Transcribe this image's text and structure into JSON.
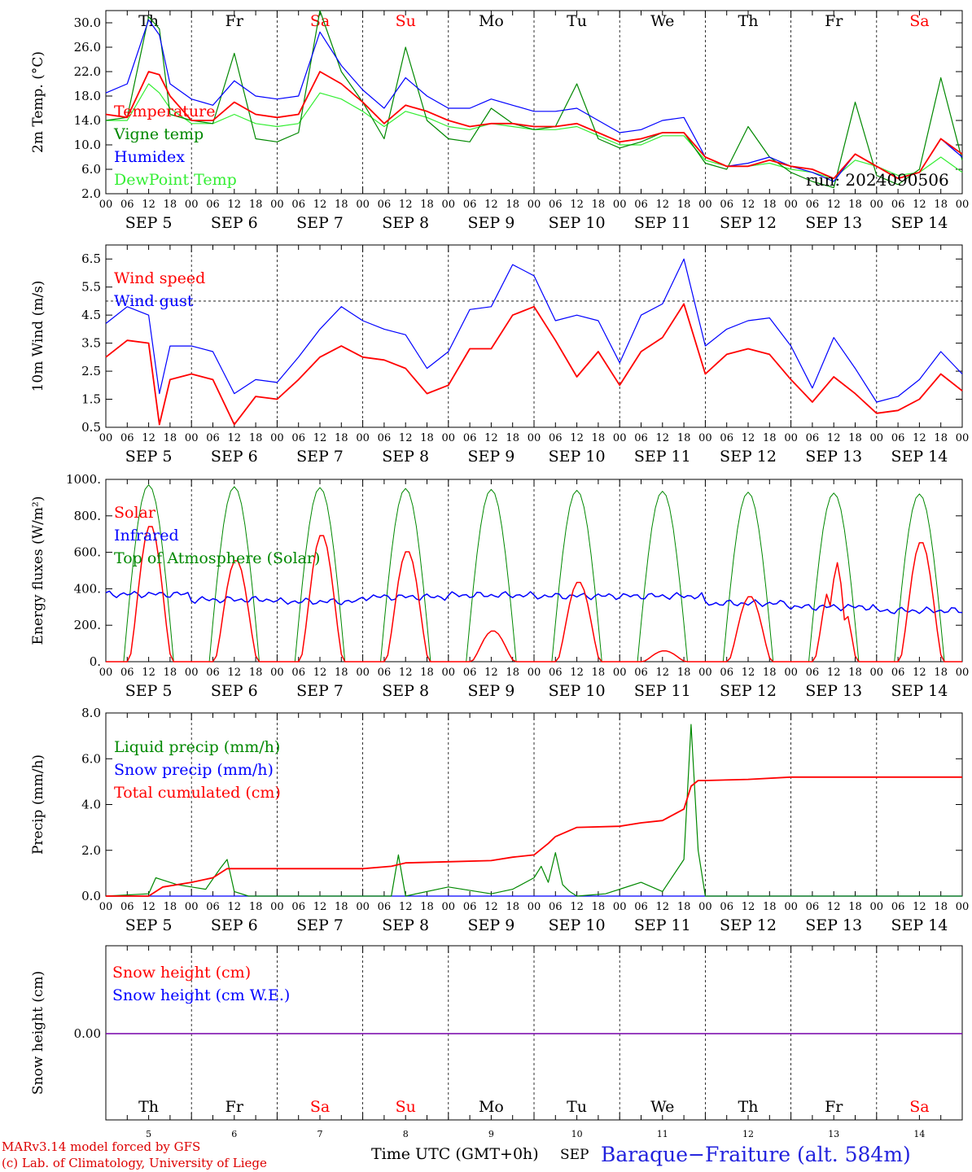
{
  "footer": {
    "model_line": "MARv3.14 model forced by GFS",
    "credit_line": "(c) Lab. of Climatology, University of Liege",
    "time_axis_label": "Time UTC (GMT+0h)",
    "month": "SEP",
    "station": "Baraque−Fraiture (alt. 584m)"
  },
  "days": [
    "Th",
    "Fr",
    "Sa",
    "Su",
    "Mo",
    "Tu",
    "We",
    "Th",
    "Fr",
    "Sa"
  ],
  "weekend_days": [
    "Sa",
    "Su"
  ],
  "day_numbers": [
    "5",
    "6",
    "7",
    "8",
    "9",
    "10",
    "11",
    "12",
    "13",
    "14"
  ],
  "date_labels": [
    "SEP  5",
    "SEP  6",
    "SEP  7",
    "SEP  8",
    "SEP  9",
    "SEP 10",
    "SEP 11",
    "SEP 12",
    "SEP 13",
    "SEP 14"
  ],
  "hour_labels": [
    "00",
    "06",
    "12",
    "18"
  ],
  "colors": {
    "red": "#ff0000",
    "green": "#008800",
    "blue": "#0000ff",
    "lightgreen": "#33ee33",
    "purple": "#7700aa"
  },
  "chart_data": [
    {
      "type": "line",
      "ylabel": "2m Temp. (°C)",
      "ylim": [
        2,
        32
      ],
      "yticks": [
        "2.0",
        "6.0",
        "10.0",
        "14.0",
        "18.0",
        "22.0",
        "26.0",
        "30.0"
      ],
      "ytick_values": [
        2,
        6,
        10,
        14,
        18,
        22,
        26,
        30
      ],
      "run_label": "run: 2024090506",
      "x_hours": [
        0,
        6,
        12,
        15,
        18,
        24,
        30,
        36,
        42,
        48,
        54,
        60,
        66,
        72,
        78,
        84,
        90,
        96,
        102,
        108,
        114,
        120,
        126,
        132,
        138,
        144,
        150,
        156,
        162,
        168,
        174,
        180,
        186,
        192,
        198,
        204,
        210,
        216,
        222,
        228,
        234,
        240
      ],
      "series": [
        {
          "name": "Temperature",
          "color": "#ff0000",
          "values": [
            15,
            14.5,
            22,
            21.5,
            18,
            14,
            14,
            17,
            15,
            14.5,
            15,
            22,
            20,
            17,
            13.5,
            16.5,
            15.5,
            14,
            13,
            13.5,
            13.5,
            13,
            13,
            13.5,
            12,
            10.5,
            11,
            12,
            12,
            8,
            6.5,
            6.5,
            7.5,
            6.5,
            6,
            4.5,
            8.5,
            6.5,
            4.5,
            5.5,
            11,
            8.5
          ]
        },
        {
          "name": "Vigne temp",
          "color": "#008800",
          "values": [
            14,
            14.5,
            31,
            29,
            15,
            14,
            13.5,
            25,
            11,
            10.5,
            12,
            32,
            22,
            17,
            11,
            26,
            14,
            11,
            10.5,
            16,
            13.5,
            12.5,
            13,
            20,
            11,
            9.5,
            10.5,
            12,
            12,
            7,
            6,
            13,
            8,
            5.5,
            4,
            3,
            17,
            5,
            3.5,
            6,
            21,
            7.5
          ]
        },
        {
          "name": "Humidex",
          "color": "#0000ff",
          "values": [
            18.5,
            20,
            30.5,
            28,
            20,
            17.5,
            16.5,
            20.5,
            18,
            17.5,
            18,
            28.5,
            23,
            19,
            16,
            21,
            18,
            16,
            16,
            17.5,
            16.5,
            15.5,
            15.5,
            16,
            14,
            12,
            12.5,
            14,
            14.5,
            8,
            6.5,
            7,
            8,
            6.5,
            5.5,
            4,
            8.5,
            6.5,
            4.5,
            5.5,
            11,
            8
          ]
        },
        {
          "name": "DewPoint Temp",
          "color": "#33ee33",
          "values": [
            14,
            14,
            20,
            18.5,
            16,
            13.5,
            13.5,
            15,
            13.5,
            13,
            13.5,
            18.5,
            17.5,
            15.5,
            13,
            15.5,
            14.5,
            13,
            12.5,
            13.5,
            13,
            12.5,
            12.5,
            13,
            11.5,
            10,
            10,
            11.5,
            11.5,
            7.5,
            6.5,
            6.5,
            7,
            6,
            5.5,
            4.5,
            7.5,
            6.5,
            5,
            5.5,
            8,
            5.5
          ]
        }
      ]
    },
    {
      "type": "line",
      "ylabel": "10m Wind (m/s)",
      "ylim": [
        0.5,
        7
      ],
      "yticks": [
        "0.5",
        "1.5",
        "2.5",
        "3.5",
        "4.5",
        "5.5",
        "6.5"
      ],
      "ytick_values": [
        0.5,
        1.5,
        2.5,
        3.5,
        4.5,
        5.5,
        6.5
      ],
      "reference_line": 5,
      "x_hours": [
        0,
        6,
        12,
        15,
        18,
        24,
        30,
        36,
        42,
        48,
        54,
        60,
        66,
        72,
        78,
        84,
        90,
        96,
        102,
        108,
        114,
        120,
        126,
        132,
        138,
        144,
        150,
        156,
        162,
        168,
        174,
        180,
        186,
        192,
        198,
        204,
        210,
        216,
        222,
        228,
        234,
        240
      ],
      "series": [
        {
          "name": "Wind speed",
          "color": "#ff0000",
          "values": [
            3,
            3.6,
            3.5,
            0.6,
            2.2,
            2.4,
            2.2,
            0.6,
            1.6,
            1.5,
            2.2,
            3,
            3.4,
            3,
            2.9,
            2.6,
            1.7,
            2,
            3.3,
            3.3,
            4.5,
            4.8,
            3.6,
            2.3,
            3.2,
            2,
            3.2,
            3.7,
            4.9,
            2.4,
            3.1,
            3.3,
            3.1,
            2.2,
            1.4,
            2.3,
            1.7,
            1,
            1.1,
            1.5,
            2.4,
            1.8
          ]
        },
        {
          "name": "Wind gust",
          "color": "#0000ff",
          "values": [
            4.2,
            4.8,
            4.5,
            1.7,
            3.4,
            3.4,
            3.2,
            1.7,
            2.2,
            2.1,
            3,
            4,
            4.8,
            4.3,
            4,
            3.8,
            2.6,
            3.2,
            4.7,
            4.8,
            6.3,
            5.9,
            4.3,
            4.5,
            4.3,
            2.8,
            4.5,
            4.9,
            6.5,
            3.4,
            4,
            4.3,
            4.4,
            3.4,
            1.9,
            3.7,
            2.6,
            1.4,
            1.6,
            2.2,
            3.2,
            2.4
          ]
        }
      ]
    },
    {
      "type": "line",
      "ylabel": "Energy fluxes (W/m²)",
      "ylim": [
        0,
        1000
      ],
      "yticks": [
        "0.",
        "200.",
        "400.",
        "600.",
        "800.",
        "1000."
      ],
      "ytick_values": [
        0,
        200,
        400,
        600,
        800,
        1000
      ],
      "toa_peaks": [
        970,
        960,
        955,
        950,
        945,
        940,
        935,
        930,
        925,
        920
      ],
      "solar_peaks": [
        750,
        560,
        700,
        610,
        170,
        440,
        60,
        360,
        550,
        660
      ],
      "infrared_levels": [
        370,
        340,
        330,
        355,
        365,
        360,
        360,
        320,
        300,
        280
      ],
      "series": [
        {
          "name": "Solar",
          "color": "#ff0000"
        },
        {
          "name": "Infrared",
          "color": "#0000ff"
        },
        {
          "name": "Top of Atmosphere (Solar)",
          "color": "#008800"
        }
      ]
    },
    {
      "type": "line",
      "ylabel": "Precip (mm/h)",
      "ylim": [
        0,
        8
      ],
      "yticks": [
        "0.0",
        "2.0",
        "4.0",
        "6.0",
        "8.0"
      ],
      "ytick_values": [
        0,
        2,
        4,
        6,
        8
      ],
      "series": [
        {
          "name": "Liquid precip (mm/h)",
          "color": "#008800",
          "x_hours": [
            0,
            12,
            14,
            16,
            20,
            24,
            28,
            32,
            34,
            36,
            40,
            80,
            82,
            84,
            96,
            108,
            114,
            120,
            122,
            124,
            126,
            128,
            130,
            132,
            140,
            150,
            156,
            162,
            164,
            166,
            168,
            240
          ],
          "values": [
            0,
            0.1,
            0.8,
            0.7,
            0.5,
            0.4,
            0.3,
            1.2,
            1.6,
            0.2,
            0,
            0,
            1.8,
            0,
            0.4,
            0.1,
            0.3,
            0.8,
            1.3,
            0.6,
            1.9,
            0.5,
            0.2,
            0,
            0.1,
            0.6,
            0.2,
            1.6,
            7.5,
            2,
            0,
            0
          ]
        },
        {
          "name": "Snow precip (mm/h)",
          "color": "#0000ff",
          "x_hours": [
            0,
            240
          ],
          "values": [
            0,
            0
          ]
        },
        {
          "name": "Total cumulated (cm)",
          "color": "#ff0000",
          "x_hours": [
            0,
            12,
            16,
            24,
            30,
            34,
            36,
            72,
            80,
            84,
            96,
            108,
            114,
            120,
            124,
            126,
            132,
            144,
            150,
            156,
            162,
            164,
            166,
            168,
            180,
            192,
            240
          ],
          "values": [
            0,
            0,
            0.4,
            0.6,
            0.8,
            1.2,
            1.2,
            1.2,
            1.3,
            1.45,
            1.5,
            1.55,
            1.7,
            1.8,
            2.3,
            2.6,
            3,
            3.05,
            3.2,
            3.3,
            3.8,
            4.8,
            5.05,
            5.05,
            5.1,
            5.2,
            5.2
          ]
        }
      ]
    },
    {
      "type": "line",
      "ylabel": "Snow height (cm)",
      "yticks": [
        "0.00"
      ],
      "series": [
        {
          "name": "Snow height (cm)",
          "color": "#ff0000",
          "x_hours": [
            0,
            240
          ],
          "values": [
            0,
            0
          ]
        },
        {
          "name": "Snow height (cm W.E.)",
          "color": "#0000ff",
          "x_hours": [
            0,
            240
          ],
          "values": [
            0,
            0
          ]
        }
      ]
    }
  ]
}
